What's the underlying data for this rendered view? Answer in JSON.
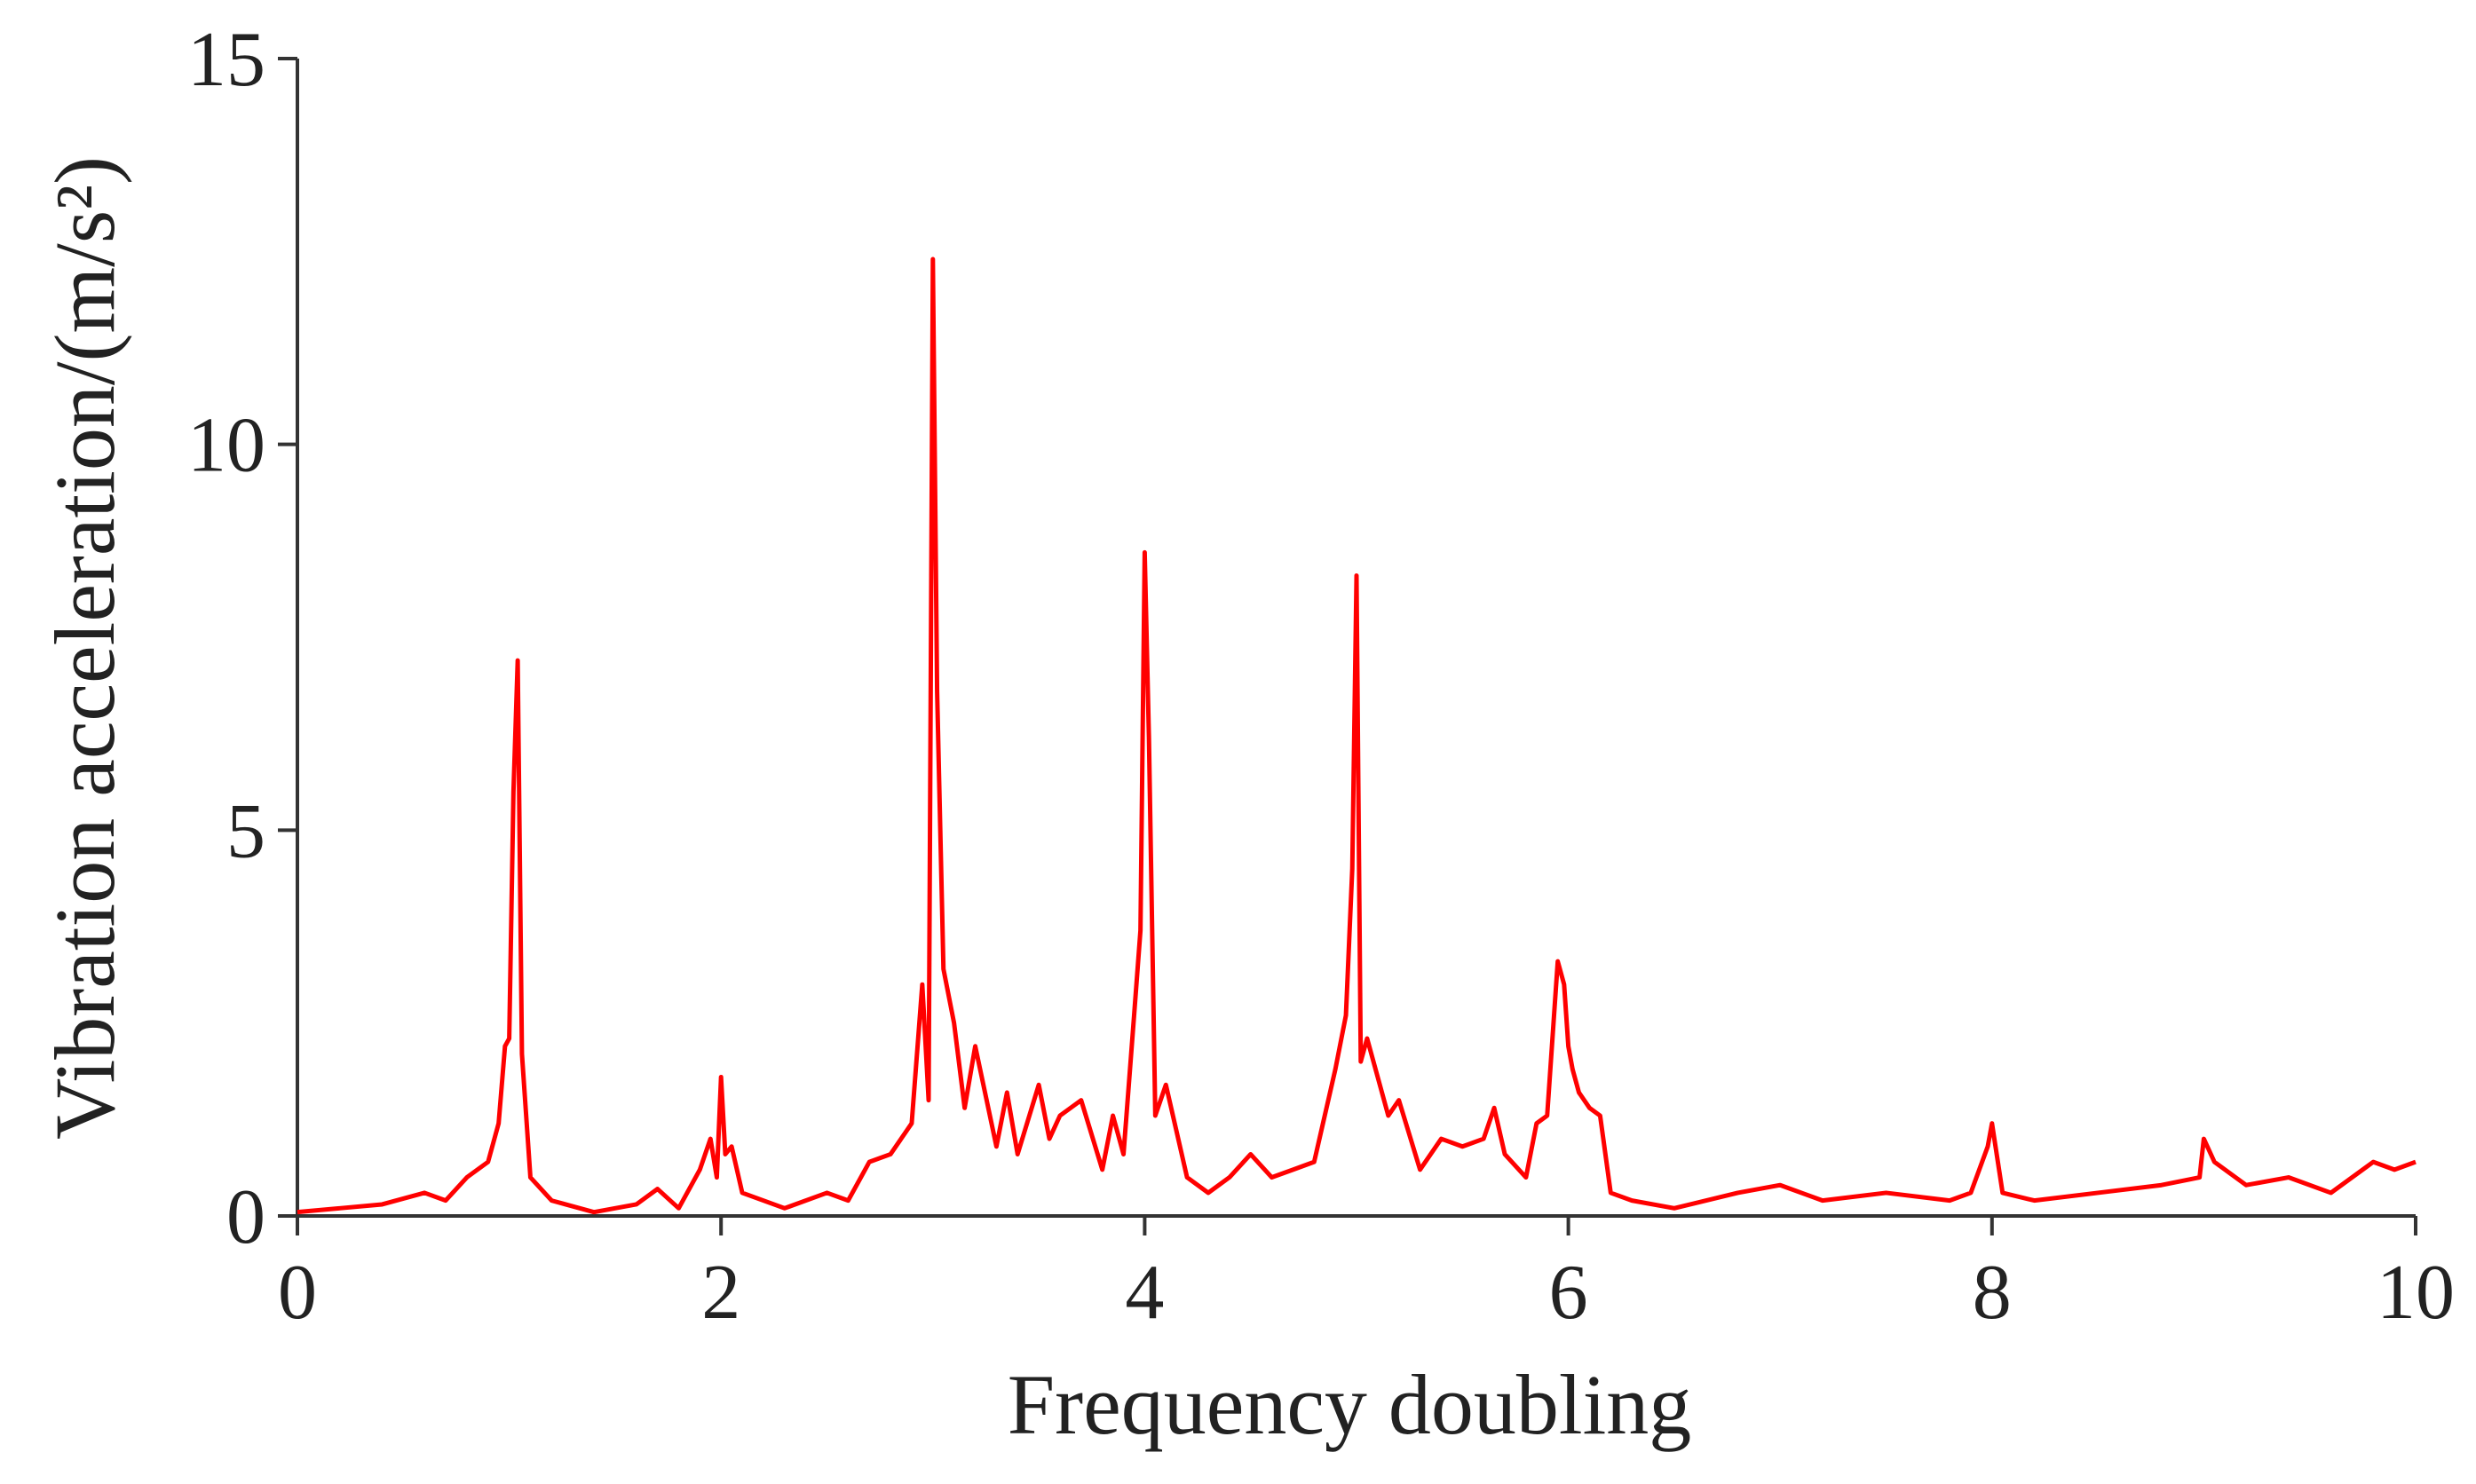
{
  "chart_data": {
    "type": "line",
    "x_label": "Frequency doubling",
    "y_label": "Vibration acceleration/(m/s²)",
    "x": [
      0,
      0.2,
      0.4,
      0.6,
      0.7,
      0.8,
      0.9,
      0.95,
      0.98,
      1.0,
      1.02,
      1.04,
      1.06,
      1.1,
      1.2,
      1.4,
      1.6,
      1.7,
      1.8,
      1.9,
      1.95,
      1.98,
      2.0,
      2.02,
      2.05,
      2.1,
      2.3,
      2.5,
      2.6,
      2.7,
      2.8,
      2.9,
      2.95,
      2.98,
      3.0,
      3.02,
      3.05,
      3.1,
      3.15,
      3.2,
      3.3,
      3.35,
      3.4,
      3.5,
      3.55,
      3.6,
      3.7,
      3.8,
      3.85,
      3.9,
      3.95,
      3.98,
      4.0,
      4.02,
      4.05,
      4.1,
      4.2,
      4.3,
      4.4,
      4.5,
      4.6,
      4.7,
      4.8,
      4.9,
      4.95,
      4.98,
      5.0,
      5.02,
      5.05,
      5.1,
      5.15,
      5.2,
      5.3,
      5.4,
      5.5,
      5.6,
      5.65,
      5.7,
      5.8,
      5.85,
      5.9,
      5.95,
      5.98,
      6.0,
      6.02,
      6.05,
      6.1,
      6.15,
      6.2,
      6.3,
      6.5,
      6.8,
      7.0,
      7.2,
      7.5,
      7.8,
      7.9,
      7.98,
      8.0,
      8.05,
      8.2,
      8.5,
      8.8,
      8.98,
      9.0,
      9.05,
      9.2,
      9.4,
      9.6,
      9.8,
      9.9,
      10.0
    ],
    "series": [
      {
        "color": "#ff0000",
        "values": [
          0.05,
          0.1,
          0.15,
          0.3,
          0.2,
          0.5,
          0.7,
          1.2,
          2.2,
          2.3,
          5.5,
          7.2,
          2.1,
          0.5,
          0.2,
          0.05,
          0.15,
          0.35,
          0.1,
          0.6,
          1.0,
          0.5,
          1.8,
          0.8,
          0.9,
          0.3,
          0.1,
          0.3,
          0.2,
          0.7,
          0.8,
          1.2,
          3.0,
          1.5,
          12.4,
          6.8,
          3.2,
          2.5,
          1.4,
          2.2,
          0.9,
          1.6,
          0.8,
          1.7,
          1.0,
          1.3,
          1.5,
          0.6,
          1.3,
          0.8,
          2.6,
          3.7,
          8.6,
          6.2,
          1.3,
          1.7,
          0.5,
          0.3,
          0.5,
          0.8,
          0.5,
          0.6,
          0.7,
          1.9,
          2.6,
          4.5,
          8.3,
          2.0,
          2.3,
          1.8,
          1.3,
          1.5,
          0.6,
          1.0,
          0.9,
          1.0,
          1.4,
          0.8,
          0.5,
          1.2,
          1.3,
          3.3,
          3.0,
          2.2,
          1.9,
          1.6,
          1.4,
          1.3,
          0.3,
          0.2,
          0.1,
          0.3,
          0.4,
          0.2,
          0.3,
          0.2,
          0.3,
          0.9,
          1.2,
          0.3,
          0.2,
          0.3,
          0.4,
          0.5,
          1.0,
          0.7,
          0.4,
          0.5,
          0.3,
          0.7,
          0.6,
          0.7
        ]
      }
    ],
    "xlim": [
      0,
      10
    ],
    "xticks": [
      0,
      2,
      4,
      6,
      8,
      10
    ],
    "ylim": [
      0,
      15
    ],
    "yticks": [
      0,
      5,
      10,
      15
    ]
  }
}
